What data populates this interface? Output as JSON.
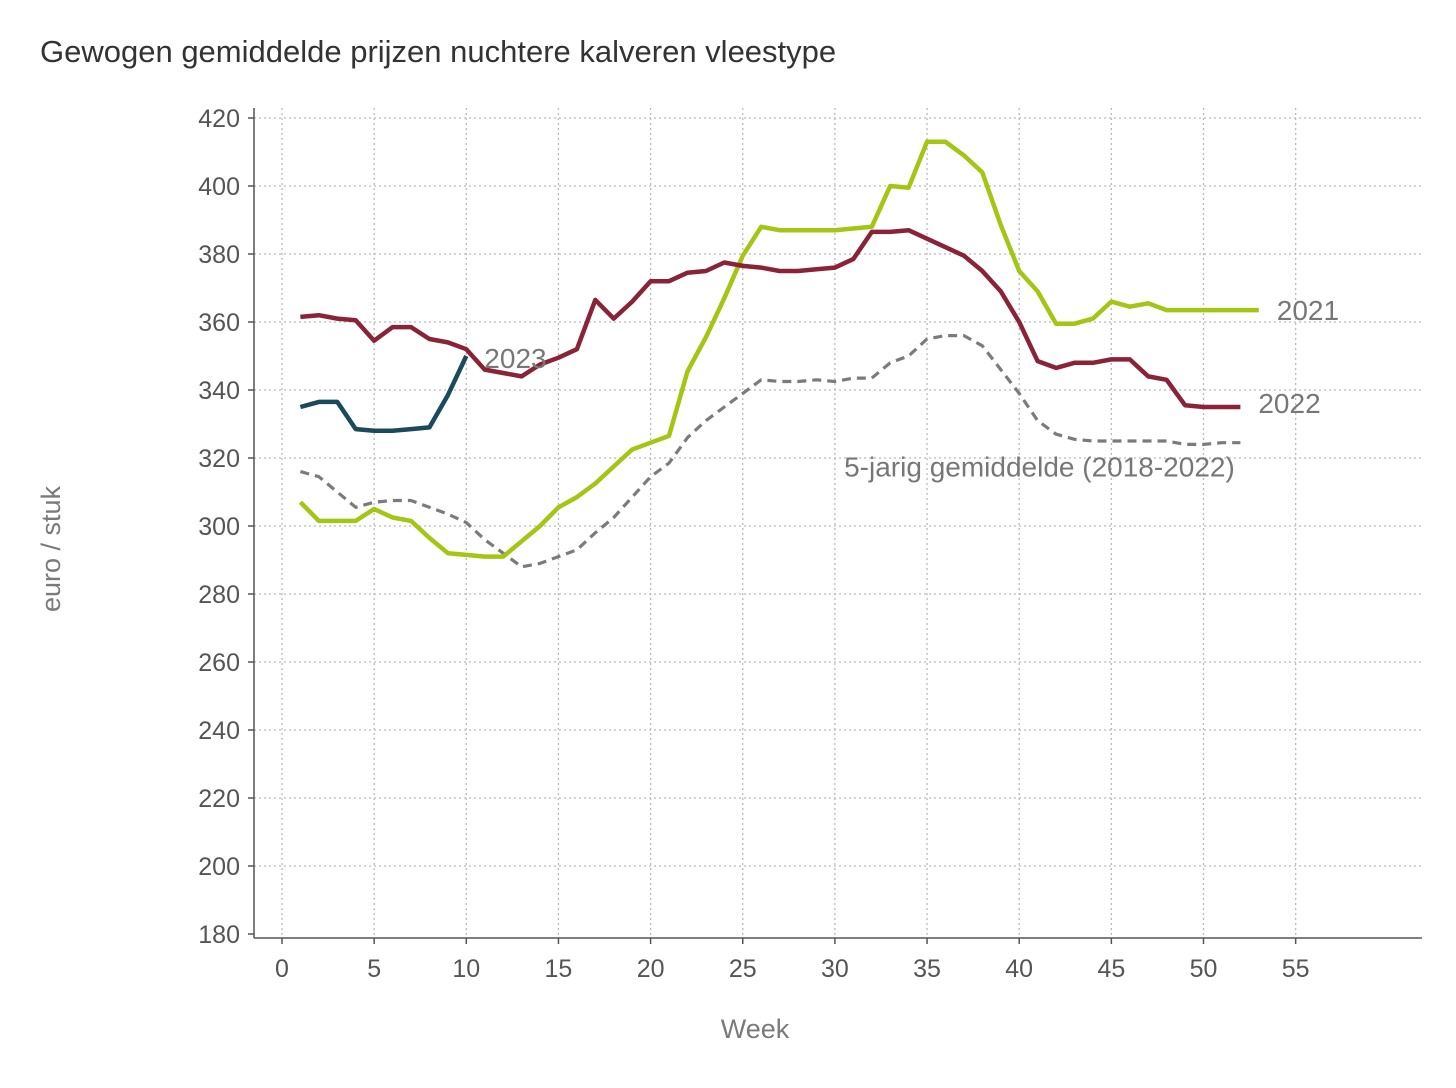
{
  "chart_data": {
    "type": "line",
    "title": "Gewogen gemiddelde prijzen nuchtere kalveren vleestype",
    "xlabel": "Week",
    "ylabel": "euro / stuk",
    "xlim": [
      0,
      55
    ],
    "ylim": [
      180,
      420
    ],
    "x_ticks": [
      0,
      5,
      10,
      15,
      20,
      25,
      30,
      35,
      40,
      45,
      50,
      55
    ],
    "y_ticks": [
      180,
      200,
      220,
      240,
      260,
      280,
      300,
      320,
      340,
      360,
      380,
      400,
      420
    ],
    "grid": true,
    "legend": "direct labels at line ends",
    "series": [
      {
        "name": "2021",
        "color": "#a3c614",
        "dash": "solid",
        "points": [
          [
            1,
            307
          ],
          [
            2,
            301.5
          ],
          [
            3,
            301.5
          ],
          [
            4,
            301.5
          ],
          [
            5,
            305
          ],
          [
            6,
            302.5
          ],
          [
            7,
            301.5
          ],
          [
            8,
            296.5
          ],
          [
            9,
            292
          ],
          [
            10,
            291.5
          ],
          [
            11,
            291
          ],
          [
            12,
            291
          ],
          [
            13,
            295.5
          ],
          [
            14,
            300
          ],
          [
            15,
            305.5
          ],
          [
            16,
            308.5
          ],
          [
            17,
            312.5
          ],
          [
            18,
            317.5
          ],
          [
            19,
            322.5
          ],
          [
            20,
            324.5
          ],
          [
            21,
            326.5
          ],
          [
            22,
            345.5
          ],
          [
            23,
            355.5
          ],
          [
            24,
            367
          ],
          [
            25,
            379.5
          ],
          [
            26,
            388
          ],
          [
            27,
            387
          ],
          [
            28,
            387
          ],
          [
            29,
            387
          ],
          [
            30,
            387
          ],
          [
            31,
            387.5
          ],
          [
            32,
            388
          ],
          [
            33,
            400
          ],
          [
            34,
            399.5
          ],
          [
            35,
            413
          ],
          [
            36,
            413
          ],
          [
            37,
            409
          ],
          [
            38,
            404
          ],
          [
            39,
            388.5
          ],
          [
            40,
            375
          ],
          [
            41,
            369
          ],
          [
            42,
            359.5
          ],
          [
            43,
            359.5
          ],
          [
            44,
            361
          ],
          [
            45,
            366
          ],
          [
            46,
            364.5
          ],
          [
            47,
            365.5
          ],
          [
            48,
            363.5
          ],
          [
            49,
            363.5
          ],
          [
            50,
            363.5
          ],
          [
            51,
            363.5
          ],
          [
            52,
            363.5
          ],
          [
            53,
            363.5
          ]
        ]
      },
      {
        "name": "2022",
        "color": "#8a2338",
        "dash": "solid",
        "points": [
          [
            1,
            361.5
          ],
          [
            2,
            362
          ],
          [
            3,
            361
          ],
          [
            4,
            360.5
          ],
          [
            5,
            354.5
          ],
          [
            6,
            358.5
          ],
          [
            7,
            358.5
          ],
          [
            8,
            355
          ],
          [
            9,
            354
          ],
          [
            10,
            352
          ],
          [
            11,
            346
          ],
          [
            12,
            345
          ],
          [
            13,
            344
          ],
          [
            14,
            347.5
          ],
          [
            15,
            349.5
          ],
          [
            16,
            352
          ],
          [
            17,
            366.5
          ],
          [
            18,
            361
          ],
          [
            19,
            366
          ],
          [
            20,
            372
          ],
          [
            21,
            372
          ],
          [
            22,
            374.5
          ],
          [
            23,
            375
          ],
          [
            24,
            377.5
          ],
          [
            25,
            376.5
          ],
          [
            26,
            376
          ],
          [
            27,
            375
          ],
          [
            28,
            375
          ],
          [
            29,
            375.5
          ],
          [
            30,
            376
          ],
          [
            31,
            378.5
          ],
          [
            32,
            386.5
          ],
          [
            33,
            386.5
          ],
          [
            34,
            387
          ],
          [
            35,
            384.5
          ],
          [
            36,
            382
          ],
          [
            37,
            379.5
          ],
          [
            38,
            375
          ],
          [
            39,
            369
          ],
          [
            40,
            360
          ],
          [
            41,
            348.5
          ],
          [
            42,
            346.5
          ],
          [
            43,
            348
          ],
          [
            44,
            348
          ],
          [
            45,
            349
          ],
          [
            46,
            349
          ],
          [
            47,
            344
          ],
          [
            48,
            343
          ],
          [
            49,
            335.5
          ],
          [
            50,
            335
          ],
          [
            51,
            335
          ],
          [
            52,
            335
          ]
        ]
      },
      {
        "name": "2023",
        "color": "#1b4a5b",
        "dash": "solid",
        "points": [
          [
            1,
            335
          ],
          [
            2,
            336.5
          ],
          [
            3,
            336.5
          ],
          [
            4,
            328.5
          ],
          [
            5,
            328
          ],
          [
            6,
            328
          ],
          [
            7,
            328.5
          ],
          [
            8,
            329
          ],
          [
            9,
            338.5
          ],
          [
            10,
            350
          ]
        ]
      },
      {
        "name": "5-jarig gemiddelde (2018-2022)",
        "color": "#7b7b7b",
        "dash": "dashed",
        "points": [
          [
            1,
            316
          ],
          [
            2,
            314.5
          ],
          [
            3,
            310
          ],
          [
            4,
            305.5
          ],
          [
            5,
            307
          ],
          [
            6,
            307.5
          ],
          [
            7,
            307.5
          ],
          [
            8,
            305.5
          ],
          [
            9,
            303.5
          ],
          [
            10,
            301
          ],
          [
            11,
            296
          ],
          [
            12,
            292
          ],
          [
            13,
            288
          ],
          [
            14,
            289
          ],
          [
            15,
            291
          ],
          [
            16,
            293
          ],
          [
            17,
            298
          ],
          [
            18,
            302.5
          ],
          [
            19,
            308.5
          ],
          [
            20,
            314.5
          ],
          [
            21,
            318.5
          ],
          [
            22,
            326
          ],
          [
            23,
            331
          ],
          [
            24,
            335
          ],
          [
            25,
            339
          ],
          [
            26,
            343
          ],
          [
            27,
            342.5
          ],
          [
            28,
            342.5
          ],
          [
            29,
            343
          ],
          [
            30,
            342.5
          ],
          [
            31,
            343.5
          ],
          [
            32,
            343.5
          ],
          [
            33,
            348
          ],
          [
            34,
            350
          ],
          [
            35,
            355
          ],
          [
            36,
            356
          ],
          [
            37,
            356
          ],
          [
            38,
            353
          ],
          [
            39,
            346
          ],
          [
            40,
            339
          ],
          [
            41,
            331
          ],
          [
            42,
            327
          ],
          [
            43,
            325.5
          ],
          [
            44,
            325
          ],
          [
            45,
            325
          ],
          [
            46,
            325
          ],
          [
            47,
            325
          ],
          [
            48,
            325
          ],
          [
            49,
            324
          ],
          [
            50,
            324
          ],
          [
            51,
            324.5
          ],
          [
            52,
            324.5
          ]
        ]
      }
    ]
  }
}
